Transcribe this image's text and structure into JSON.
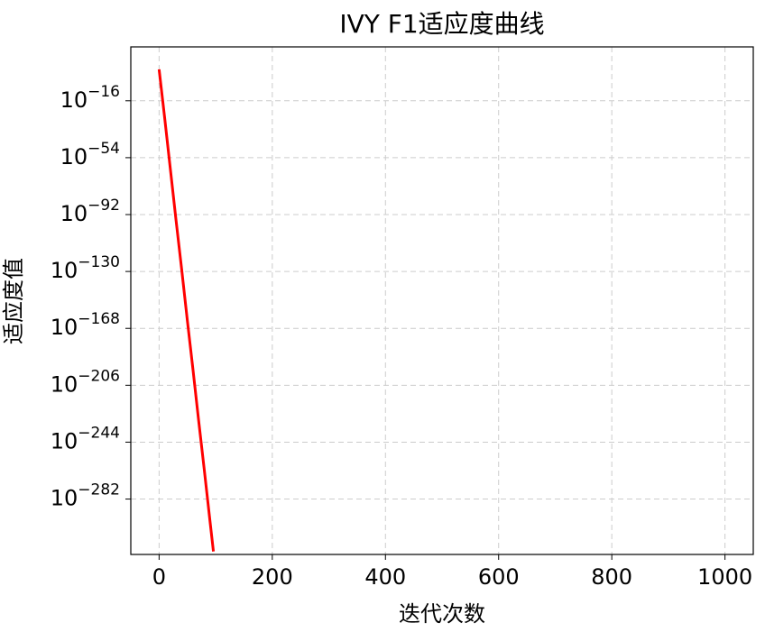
{
  "chart_data": {
    "type": "line",
    "title": "IVY F1适应度曲线",
    "x_label": "迭代次数",
    "y_label": "适应度值",
    "x": [
      0,
      10,
      20,
      30,
      40,
      50,
      60,
      70,
      80,
      90,
      96
    ],
    "series": [
      {
        "color": "#ff0000",
        "values": [
          100000.0,
          1e-28,
          1e-62,
          1e-96,
          1e-129,
          1e-163,
          1e-196,
          1e-230,
          1e-263,
          1e-297,
          1e-317
        ]
      }
    ],
    "xlim": [
      -50,
      1050
    ],
    "xticks": [
      0,
      200,
      400,
      600,
      800,
      1000
    ],
    "ylim": [
      1e-319,
      1e+20
    ],
    "log_y": true,
    "yticks": [
      {
        "value": 1e-16,
        "label": "10^−16"
      },
      {
        "value": 1e-54,
        "label": "10^−54"
      },
      {
        "value": 1e-92,
        "label": "10^−92"
      },
      {
        "value": 1e-130,
        "label": "10^−130"
      },
      {
        "value": 1e-168,
        "label": "10^−168"
      },
      {
        "value": 1e-206,
        "label": "10^−206"
      },
      {
        "value": 1e-244,
        "label": "10^−244"
      },
      {
        "value": 1e-282,
        "label": "10^−282"
      }
    ],
    "grid": true
  }
}
